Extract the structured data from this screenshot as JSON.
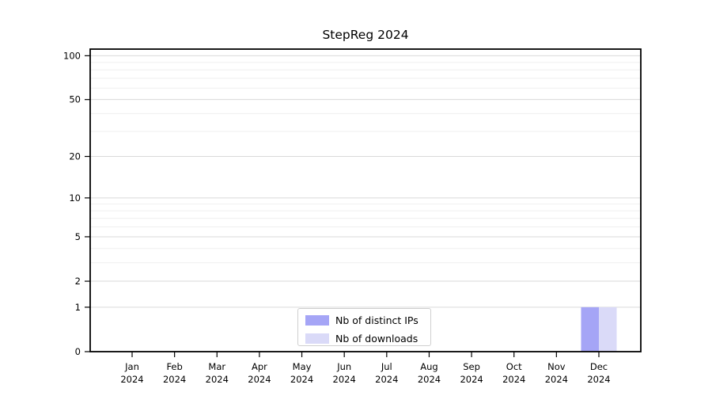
{
  "figure": {
    "background": "#ffffff"
  },
  "chart_data": {
    "type": "bar",
    "title": "StepReg 2024",
    "categories": [
      "Jan 2024",
      "Feb 2024",
      "Mar 2024",
      "Apr 2024",
      "May 2024",
      "Jun 2024",
      "Jul 2024",
      "Aug 2024",
      "Sep 2024",
      "Oct 2024",
      "Nov 2024",
      "Dec 2024"
    ],
    "series": [
      {
        "name": "Nb of distinct IPs",
        "color": "#a5a5f6",
        "values": [
          0,
          0,
          0,
          0,
          0,
          0,
          0,
          0,
          0,
          0,
          0,
          1
        ]
      },
      {
        "name": "Nb of downloads",
        "color": "#dadaf8",
        "values": [
          0,
          0,
          0,
          0,
          0,
          0,
          0,
          0,
          0,
          0,
          0,
          1
        ]
      }
    ],
    "xlabel": "",
    "ylabel": "",
    "yscale": "log1p",
    "y_ticks": [
      0,
      1,
      2,
      5,
      10,
      20,
      50,
      100
    ],
    "ylim": [
      0,
      111
    ],
    "grid": true,
    "legend_position": "bottom-center-inside"
  },
  "colors": {
    "axis": "#000000",
    "grid_major": "#d9d9d9",
    "grid_minor": "#efefef",
    "tick_text": "#000000",
    "legend_border": "#cfcfcf"
  }
}
